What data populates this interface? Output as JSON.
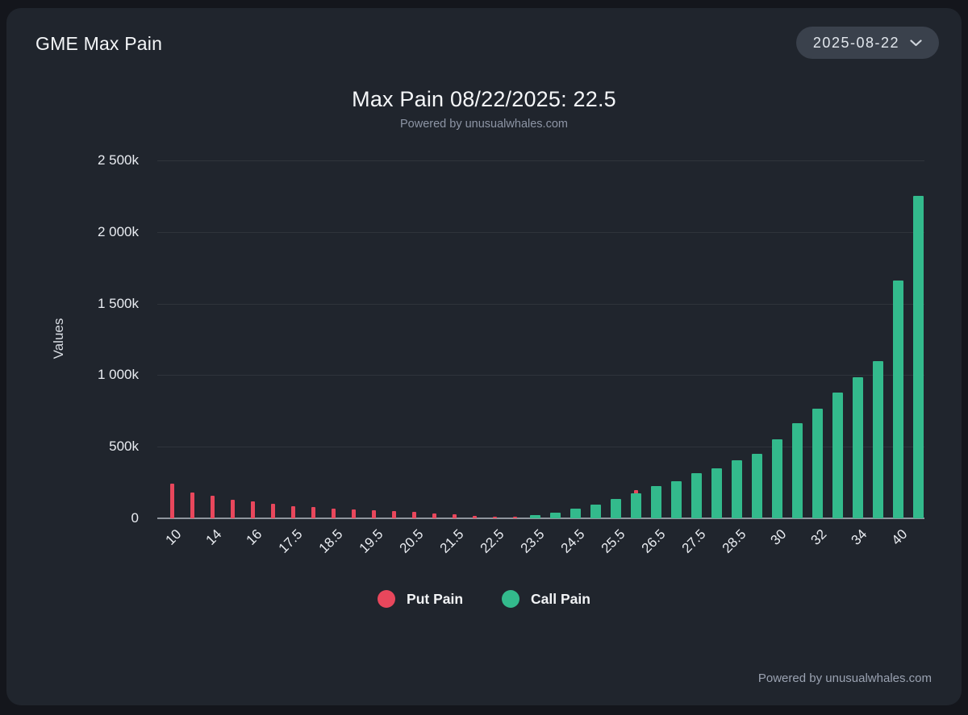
{
  "header": {
    "title": "GME Max Pain",
    "date_selector": {
      "value": "2025-08-22"
    }
  },
  "chart_header": {
    "title": "Max Pain 08/22/2025: 22.5",
    "subtitle": "Powered by unusualwhales.com"
  },
  "footer": {
    "credit": "Powered by unusualwhales.com"
  },
  "colors": {
    "background": "#14161c",
    "card": "#20252d",
    "put": "#e8475c",
    "call": "#33ba8c",
    "axis": "#8f959d"
  },
  "chart_data": {
    "type": "bar",
    "title": "Max Pain 08/22/2025: 22.5",
    "subtitle": "Powered by unusualwhales.com",
    "max_pain_strike": 22.5,
    "xlabel": "",
    "ylabel": "Values",
    "ylim": [
      0,
      2500000
    ],
    "grid": true,
    "legend_position": "bottom",
    "y_ticks": [
      {
        "value": 0,
        "label": "0"
      },
      {
        "value": 500000,
        "label": "500k"
      },
      {
        "value": 1000000,
        "label": "1 000k"
      },
      {
        "value": 1500000,
        "label": "1 500k"
      },
      {
        "value": 2000000,
        "label": "2 000k"
      },
      {
        "value": 2500000,
        "label": "2 500k"
      }
    ],
    "legend": [
      {
        "name": "Put Pain",
        "color": "#e8475c"
      },
      {
        "name": "Call Pain",
        "color": "#33ba8c"
      }
    ],
    "categories": [
      "10",
      "12",
      "14",
      "15",
      "16",
      "17",
      "17.5",
      "18",
      "18.5",
      "19",
      "19.5",
      "20",
      "20.5",
      "21",
      "21.5",
      "22",
      "22.5",
      "23",
      "23.5",
      "24",
      "24.5",
      "25",
      "25.5",
      "26",
      "26.5",
      "27",
      "27.5",
      "28",
      "28.5",
      "29",
      "30",
      "31",
      "32",
      "33",
      "34",
      "35",
      "40",
      "45"
    ],
    "x_tick_labels": [
      "10",
      null,
      "14",
      null,
      "16",
      null,
      "17.5",
      null,
      "18.5",
      null,
      "19.5",
      null,
      "20.5",
      null,
      "21.5",
      null,
      "22.5",
      null,
      "23.5",
      null,
      "24.5",
      null,
      "25.5",
      null,
      "26.5",
      null,
      "27.5",
      null,
      "28.5",
      null,
      "30",
      null,
      "32",
      null,
      "34",
      null,
      "40",
      null
    ],
    "series": [
      {
        "name": "Put Pain",
        "values": [
          240000,
          180000,
          158000,
          131000,
          118000,
          99000,
          86000,
          80000,
          67000,
          62000,
          58000,
          50000,
          43000,
          32000,
          28000,
          15000,
          13000,
          11000,
          0,
          0,
          0,
          0,
          0,
          197000,
          0,
          0,
          0,
          0,
          0,
          0,
          0,
          0,
          0,
          0,
          0,
          0,
          0,
          0
        ]
      },
      {
        "name": "Call Pain",
        "values": [
          0,
          0,
          0,
          0,
          0,
          0,
          0,
          0,
          0,
          0,
          0,
          0,
          0,
          0,
          0,
          0,
          0,
          0,
          25000,
          39000,
          69000,
          97000,
          137000,
          174000,
          225000,
          262000,
          318000,
          348000,
          405000,
          449000,
          552000,
          663000,
          764000,
          876000,
          983000,
          1100000,
          1660000,
          2250000
        ]
      }
    ]
  }
}
